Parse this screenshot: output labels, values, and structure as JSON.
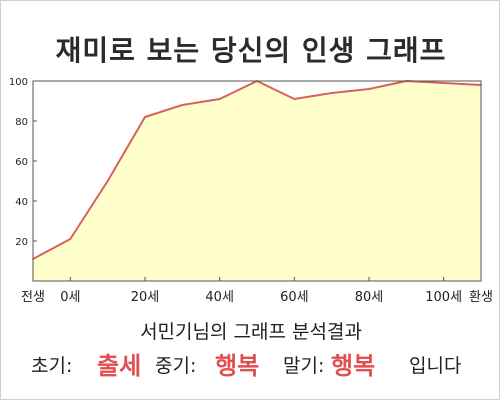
{
  "chart_data": {
    "type": "area",
    "title": "재미로 보는 당신의 인생 그래프",
    "x": [
      -10,
      0,
      10,
      20,
      30,
      40,
      50,
      60,
      70,
      80,
      90,
      100,
      110
    ],
    "values": [
      11,
      21,
      50,
      82,
      88,
      91,
      100,
      91,
      94,
      96,
      100,
      99,
      98
    ],
    "xlim": [
      -10,
      110
    ],
    "ylim": [
      0,
      100
    ],
    "x_ticks": [
      -10,
      0,
      20,
      40,
      60,
      80,
      100,
      110
    ],
    "x_tick_labels": [
      "전생",
      "0세",
      "20세",
      "40세",
      "60세",
      "80세",
      "100세",
      "환생"
    ],
    "y_ticks": [
      20,
      40,
      60,
      80,
      100
    ],
    "y_tick_labels": [
      "20",
      "40",
      "60",
      "80",
      "100"
    ],
    "grid": false,
    "colors": {
      "line": "#d9615b",
      "fill": "#ffffcc",
      "axis": "#555555"
    }
  },
  "summary": {
    "heading": "서민기님의 그래프 분석결과",
    "early_label": "초기:",
    "early_value": "출세",
    "mid_label": "중기:",
    "mid_value": "행복",
    "late_label": "말기:",
    "late_value": "행복",
    "ending": "입니다"
  }
}
